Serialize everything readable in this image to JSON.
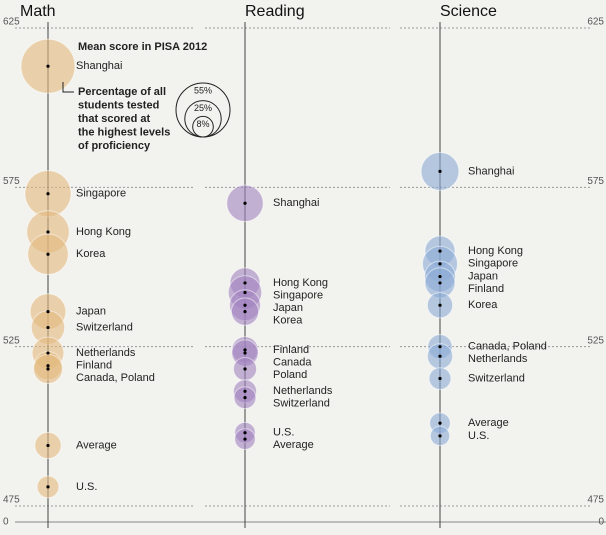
{
  "chart_data": [
    {
      "type": "bubble",
      "title": "Math",
      "color": "#e2b97f",
      "legend_title": "Mean score in PISA 2012",
      "size_title": [
        "Percentage of all",
        "students tested",
        "that scored at",
        "the highest levels",
        "of proficiency"
      ],
      "size_legend": [
        {
          "value": 55,
          "label": "55%"
        },
        {
          "value": 25,
          "label": "25%"
        },
        {
          "value": 8,
          "label": "8%"
        }
      ],
      "categories": [
        "Shanghai",
        "Singapore",
        "Hong Kong",
        "Korea",
        "Japan",
        "Switzerland",
        "Netherlands",
        "Finland",
        "Canada, Poland",
        "Average",
        "U.S."
      ],
      "values": [
        613,
        573,
        561,
        554,
        536,
        531,
        523,
        519,
        518,
        494,
        481
      ],
      "sizes": [
        55,
        40,
        34,
        31,
        24,
        21,
        19,
        15,
        16,
        13,
        9
      ],
      "ylim": [
        475,
        625
      ],
      "yticks": [
        625,
        575,
        525,
        475
      ],
      "ybreak": 0
    },
    {
      "type": "bubble",
      "title": "Reading",
      "color": "#a184bf",
      "categories": [
        "Shanghai",
        "Hong Kong",
        "Singapore",
        "Japan",
        "Korea",
        "Finland",
        "Canada",
        "Poland",
        "Netherlands",
        "Switzerland",
        "U.S.",
        "Average"
      ],
      "values": [
        570,
        545,
        542,
        538,
        536,
        524,
        523,
        518,
        511,
        509,
        498,
        496
      ],
      "sizes": [
        25,
        17,
        21,
        18,
        14,
        13,
        13,
        10,
        10,
        9,
        8,
        8
      ],
      "ylim": [
        475,
        625
      ],
      "yticks": [
        625,
        575,
        525,
        475
      ]
    },
    {
      "type": "bubble",
      "title": "Science",
      "color": "#8aaad6",
      "categories": [
        "Shanghai",
        "Hong Kong",
        "Singapore",
        "Japan",
        "Finland",
        "Korea",
        "Canada, Poland",
        "Netherlands",
        "Switzerland",
        "Average",
        "U.S."
      ],
      "values": [
        580,
        555,
        551,
        547,
        545,
        538,
        525,
        522,
        515,
        501,
        497
      ],
      "sizes": [
        27,
        17,
        23,
        18,
        17,
        12,
        11,
        12,
        9,
        8,
        7
      ],
      "ylim": [
        475,
        625
      ],
      "yticks": [
        625,
        575,
        525,
        475
      ],
      "ybreak": 0
    }
  ]
}
